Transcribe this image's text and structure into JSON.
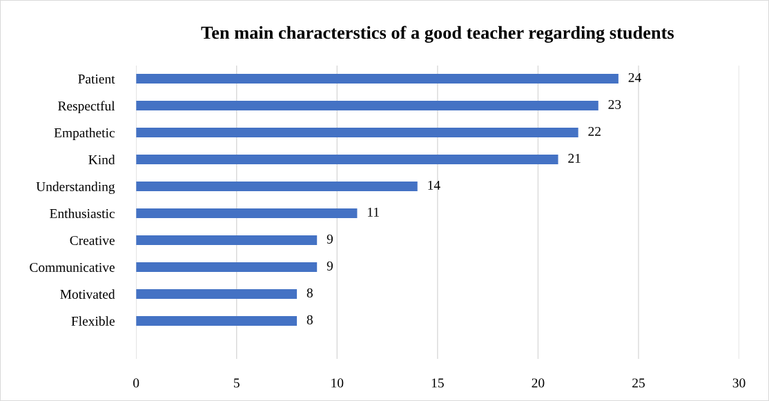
{
  "chart_data": {
    "type": "bar",
    "orientation": "horizontal",
    "title": "Ten main characterstics of a good teacher regarding students",
    "categories": [
      "Patient",
      "Respectful",
      "Empathetic",
      "Kind",
      "Understanding",
      "Enthusiastic",
      "Creative",
      "Communicative",
      "Motivated",
      "Flexible"
    ],
    "values": [
      24,
      23,
      22,
      21,
      14,
      11,
      9,
      9,
      8,
      8
    ],
    "color": "#4472c4",
    "xlim": [
      0,
      30
    ],
    "xticks": [
      0,
      5,
      10,
      15,
      20,
      25,
      30
    ],
    "grid": "x",
    "data_labels": true
  }
}
